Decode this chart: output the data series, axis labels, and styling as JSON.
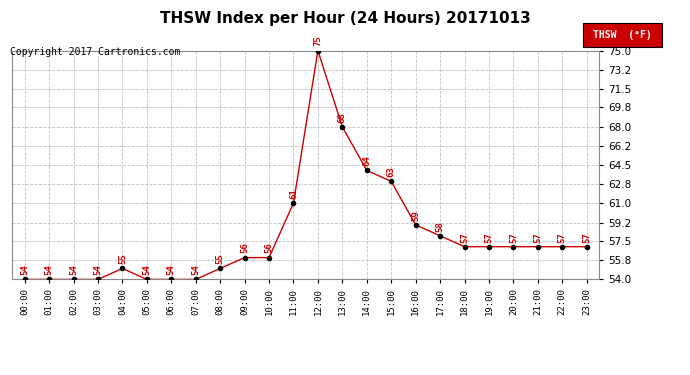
{
  "title": "THSW Index per Hour (24 Hours) 20171013",
  "copyright": "Copyright 2017 Cartronics.com",
  "legend_label": "THSW  (°F)",
  "hours": [
    0,
    1,
    2,
    3,
    4,
    5,
    6,
    7,
    8,
    9,
    10,
    11,
    12,
    13,
    14,
    15,
    16,
    17,
    18,
    19,
    20,
    21,
    22,
    23
  ],
  "values": [
    54,
    54,
    54,
    54,
    55,
    54,
    54,
    54,
    55,
    56,
    56,
    61,
    75,
    68,
    64,
    63,
    59,
    58,
    57,
    57,
    57,
    57,
    57,
    57
  ],
  "ylim": [
    54.0,
    75.0
  ],
  "yticks": [
    54.0,
    55.8,
    57.5,
    59.2,
    61.0,
    62.8,
    64.5,
    66.2,
    68.0,
    69.8,
    71.5,
    73.2,
    75.0
  ],
  "line_color": "#cc0000",
  "marker_color": "#000000",
  "label_color": "#cc0000",
  "bg_color": "#ffffff",
  "grid_color": "#c0c0c0",
  "title_fontsize": 11,
  "copyright_fontsize": 7,
  "legend_bg": "#cc0000",
  "legend_text_color": "#ffffff",
  "tick_fontsize": 7.5,
  "xlabel_fontsize": 6.5
}
